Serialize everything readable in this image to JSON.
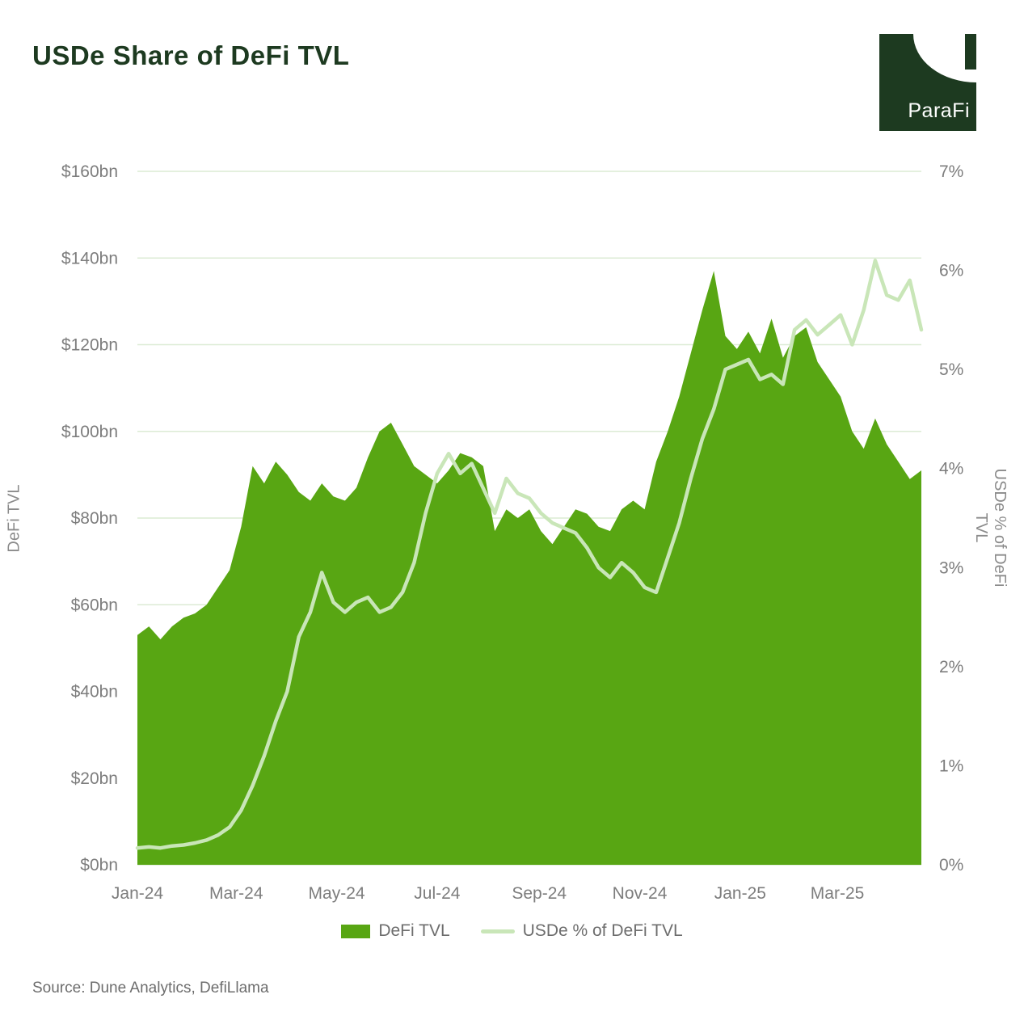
{
  "header": {
    "title": "USDe Share of DeFi TVL",
    "logo_text": "ParaFi"
  },
  "legend": {
    "tvl_label": "DeFi TVL",
    "pct_label": "USDe % of DeFi TVL"
  },
  "footer": {
    "source": "Source: Dune Analytics, DefiLlama"
  },
  "chart_data": {
    "type": "area",
    "title": "USDe Share of DeFi TVL",
    "grid": "horizontal",
    "colors": {
      "area": "#58a613",
      "line": "#c9e6b8",
      "grid": "#dcebd4",
      "brand_dark_green": "#1d3a20",
      "axis_text": "#7d7d7d"
    },
    "x": [
      "2024-01-01",
      "2024-01-08",
      "2024-01-15",
      "2024-01-22",
      "2024-01-29",
      "2024-02-05",
      "2024-02-12",
      "2024-02-19",
      "2024-02-26",
      "2024-03-04",
      "2024-03-11",
      "2024-03-18",
      "2024-03-25",
      "2024-04-01",
      "2024-04-08",
      "2024-04-15",
      "2024-04-22",
      "2024-04-29",
      "2024-05-06",
      "2024-05-13",
      "2024-05-20",
      "2024-05-27",
      "2024-06-03",
      "2024-06-10",
      "2024-06-17",
      "2024-06-24",
      "2024-07-01",
      "2024-07-08",
      "2024-07-15",
      "2024-07-22",
      "2024-07-29",
      "2024-08-05",
      "2024-08-12",
      "2024-08-19",
      "2024-08-26",
      "2024-09-02",
      "2024-09-09",
      "2024-09-16",
      "2024-09-23",
      "2024-09-30",
      "2024-10-07",
      "2024-10-14",
      "2024-10-21",
      "2024-10-28",
      "2024-11-04",
      "2024-11-11",
      "2024-11-18",
      "2024-11-25",
      "2024-12-02",
      "2024-12-09",
      "2024-12-16",
      "2024-12-23",
      "2024-12-30",
      "2025-01-06",
      "2025-01-13",
      "2025-01-20",
      "2025-01-27",
      "2025-02-03",
      "2025-02-10",
      "2025-02-17",
      "2025-02-24",
      "2025-03-03",
      "2025-03-10",
      "2025-03-17",
      "2025-03-24",
      "2025-03-31",
      "2025-04-07",
      "2025-04-14",
      "2025-04-21"
    ],
    "series": [
      {
        "name": "DeFi TVL",
        "type": "area",
        "axis": "left",
        "unit": "$bn",
        "color": "#58a613",
        "values": [
          53,
          55,
          52,
          55,
          57,
          58,
          60,
          64,
          68,
          78,
          92,
          88,
          93,
          90,
          86,
          84,
          88,
          85,
          84,
          87,
          94,
          100,
          102,
          97,
          92,
          90,
          88,
          91,
          95,
          94,
          92,
          77,
          82,
          80,
          82,
          77,
          74,
          78,
          82,
          81,
          78,
          77,
          82,
          84,
          82,
          93,
          100,
          108,
          118,
          128,
          137,
          122,
          119,
          123,
          118,
          126,
          117,
          122,
          124,
          116,
          112,
          108,
          100,
          96,
          103,
          97,
          93,
          89,
          91
        ]
      },
      {
        "name": "USDe % of DeFi TVL",
        "type": "line",
        "axis": "right",
        "unit": "%",
        "color": "#c9e6b8",
        "values": [
          0.17,
          0.18,
          0.17,
          0.19,
          0.2,
          0.22,
          0.25,
          0.3,
          0.38,
          0.55,
          0.8,
          1.1,
          1.45,
          1.75,
          2.3,
          2.55,
          2.95,
          2.65,
          2.55,
          2.65,
          2.7,
          2.55,
          2.6,
          2.75,
          3.05,
          3.55,
          3.95,
          4.15,
          3.95,
          4.05,
          3.8,
          3.55,
          3.9,
          3.75,
          3.7,
          3.55,
          3.45,
          3.4,
          3.35,
          3.2,
          3.0,
          2.9,
          3.05,
          2.95,
          2.8,
          2.75,
          3.1,
          3.45,
          3.9,
          4.3,
          4.6,
          5.0,
          5.05,
          5.1,
          4.9,
          4.95,
          4.85,
          5.4,
          5.5,
          5.35,
          5.45,
          5.55,
          5.25,
          5.6,
          6.1,
          5.75,
          5.7,
          5.9,
          5.4
        ]
      }
    ],
    "left_axis": {
      "label": "DeFi TVL",
      "min": 0,
      "max": 160,
      "tick_step": 20,
      "tick_labels": [
        "$0bn",
        "$20bn",
        "$40bn",
        "$60bn",
        "$80bn",
        "$100bn",
        "$120bn",
        "$140bn",
        "$160bn"
      ]
    },
    "right_axis": {
      "label": "USDe % of DeFi TVL",
      "min": 0,
      "max": 7,
      "tick_step": 1,
      "tick_labels": [
        "0%",
        "1%",
        "2%",
        "3%",
        "4%",
        "5%",
        "6%",
        "7%"
      ]
    },
    "x_ticks": [
      "Jan-24",
      "Mar-24",
      "May-24",
      "Jul-24",
      "Sep-24",
      "Nov-24",
      "Jan-25",
      "Mar-25"
    ],
    "x_tick_dates": [
      "2024-01-01",
      "2024-03-01",
      "2024-05-01",
      "2024-07-01",
      "2024-09-01",
      "2024-11-01",
      "2025-01-01",
      "2025-03-01"
    ]
  }
}
